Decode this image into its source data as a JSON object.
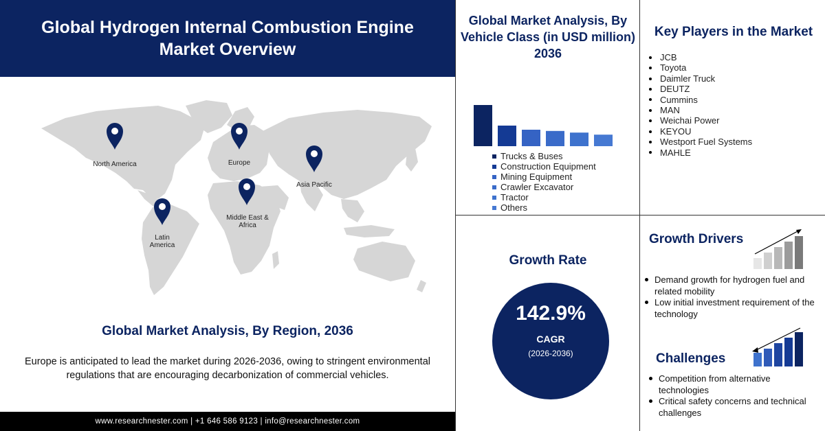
{
  "header": {
    "title": "Global Hydrogen Internal Combustion Engine Market Overview"
  },
  "regions": {
    "north_america": "North America",
    "europe": "Europe",
    "asia_pacific": "Asia Pacific",
    "middle_east_africa": "Middle East & Africa",
    "latin_america": "Latin America"
  },
  "region_section": {
    "title": "Global Market Analysis, By Region, 2036",
    "text": "Europe is anticipated to lead the market during 2026-2036, owing to stringent environmental regulations that are encouraging decarbonization of commercial vehicles."
  },
  "footer": {
    "text": "www.researchnester.com | +1 646 586 9123 | info@researchnester.com"
  },
  "vehicle_class": {
    "title": "Global Market Analysis, By Vehicle Class (in USD million) 2036"
  },
  "chart_data": {
    "type": "bar",
    "categories": [
      "Trucks & Buses",
      "Construction Equipment",
      "Mining Equipment",
      "Crawler Excavator",
      "Tractor",
      "Others"
    ],
    "values": [
      100,
      50,
      40,
      37,
      33,
      28
    ],
    "colors": [
      "#0c2461",
      "#143a94",
      "#3563c4",
      "#3a6bc9",
      "#3e72cd",
      "#4679d2"
    ],
    "legend_position": "bottom",
    "grid": false
  },
  "key_players": {
    "title": "Key Players in the Market",
    "items": [
      "JCB",
      "Toyota",
      "Daimler Truck",
      "DEUTZ",
      "Cummins",
      "MAN",
      "Weichai Power",
      "KEYOU",
      "Westport Fuel Systems",
      "MAHLE"
    ]
  },
  "growth_rate": {
    "title": "Growth Rate",
    "value": "142.9%",
    "label": "CAGR",
    "period": "(2026-2036)"
  },
  "growth_drivers": {
    "title": "Growth Drivers",
    "items": [
      "Demand growth for hydrogen fuel and related mobility",
      "Low initial investment requirement of the technology"
    ]
  },
  "challenges": {
    "title": "Challenges",
    "items": [
      "Competition from alternative technologies",
      "Critical safety concerns and technical challenges"
    ]
  },
  "colors": {
    "navy": "#0c2461",
    "map": "#d6d6d6",
    "pin": "#0c2461"
  }
}
